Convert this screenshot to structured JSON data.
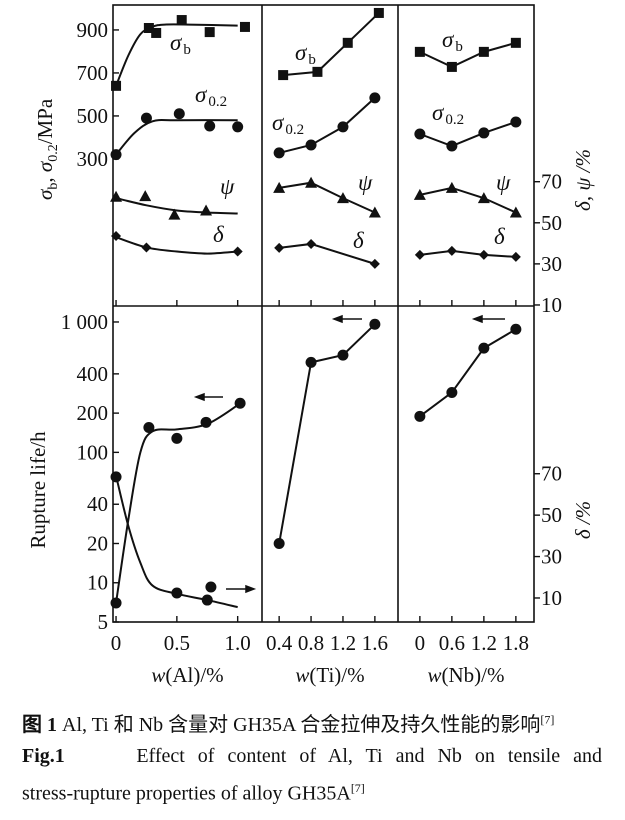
{
  "chart_data": {
    "type": "line",
    "panels": [
      {
        "element": "Al",
        "xlabel_pre": "w",
        "xlabel_post": "(Al)/%",
        "xticks": [
          0,
          0.5,
          1.0
        ],
        "xtick_labels": [
          "0",
          "0.5",
          "1.0"
        ],
        "xlim": [
          -0.025,
          1.2
        ],
        "top": {
          "sigma_b": {
            "marker": "square",
            "points": [
              [
                0,
                640
              ],
              [
                0.27,
                909
              ],
              [
                0.33,
                886
              ],
              [
                0.54,
                946
              ],
              [
                0.77,
                890
              ],
              [
                1.06,
                914
              ]
            ],
            "fit": [
              [
                0,
                640
              ],
              [
                0.1,
                780
              ],
              [
                0.2,
                880
              ],
              [
                0.3,
                915
              ],
              [
                0.4,
                925
              ],
              [
                0.6,
                925
              ],
              [
                1.0,
                920
              ]
            ]
          },
          "sigma_02": {
            "marker": "circle",
            "points": [
              [
                0,
                320
              ],
              [
                0.25,
                490
              ],
              [
                0.52,
                510
              ],
              [
                0.77,
                453
              ],
              [
                1.0,
                449
              ]
            ],
            "fit": [
              [
                0,
                320
              ],
              [
                0.15,
                420
              ],
              [
                0.3,
                475
              ],
              [
                0.5,
                480
              ],
              [
                1.0,
                480
              ]
            ]
          },
          "psi": {
            "marker": "triangle",
            "points": [
              [
                0,
                62.7
              ],
              [
                0.24,
                63
              ],
              [
                0.48,
                54
              ],
              [
                0.74,
                56
              ]
            ],
            "fit": [
              [
                0,
                62
              ],
              [
                0.25,
                58.5
              ],
              [
                0.5,
                56
              ],
              [
                0.75,
                55
              ],
              [
                1.0,
                54.5
              ]
            ]
          },
          "delta": {
            "marker": "diamond",
            "points": [
              [
                0,
                43.6
              ],
              [
                0.25,
                38
              ],
              [
                1.0,
                36
              ]
            ],
            "fit": [
              [
                0,
                43
              ],
              [
                0.25,
                38
              ],
              [
                0.5,
                36
              ],
              [
                0.75,
                35
              ],
              [
                1.0,
                36
              ]
            ]
          }
        },
        "bottom": {
          "rupture": {
            "marker": "circle",
            "axis": "left",
            "points": [
              [
                0,
                7
              ],
              [
                0.27,
                155
              ],
              [
                0.5,
                128
              ],
              [
                0.74,
                170
              ],
              [
                1.02,
                238
              ]
            ],
            "fit": [
              [
                0,
                7
              ],
              [
                0.1,
                30
              ],
              [
                0.2,
                100
              ],
              [
                0.3,
                145
              ],
              [
                0.5,
                150
              ],
              [
                0.75,
                165
              ],
              [
                1.0,
                230
              ]
            ]
          },
          "delta": {
            "marker": "circle",
            "axis": "right",
            "points": [
              [
                0,
                68.5
              ],
              [
                0.5,
                12.4
              ],
              [
                0.75,
                9
              ],
              [
                0.78,
                15.3
              ]
            ],
            "fit": [
              [
                0,
                69
              ],
              [
                0.1,
                45
              ],
              [
                0.2,
                27
              ],
              [
                0.3,
                16
              ],
              [
                0.5,
                12
              ],
              [
                0.75,
                9
              ],
              [
                1.0,
                5.6
              ]
            ]
          }
        }
      },
      {
        "element": "Ti",
        "xlabel_pre": "w",
        "xlabel_post": "(Ti)/%",
        "xticks": [
          0.4,
          0.8,
          1.2,
          1.6
        ],
        "xtick_labels": [
          "0.4",
          "0.8",
          "1.2",
          "1.6"
        ],
        "xlim": [
          0.185,
          1.89
        ],
        "top": {
          "sigma_b": {
            "marker": "square",
            "points": [
              [
                0.45,
                690
              ],
              [
                0.88,
                705
              ],
              [
                1.26,
                840
              ],
              [
                1.65,
                979
              ]
            ]
          },
          "sigma_02": {
            "marker": "circle",
            "points": [
              [
                0.4,
                328
              ],
              [
                0.8,
                365
              ],
              [
                1.2,
                449
              ],
              [
                1.6,
                584
              ]
            ]
          },
          "psi": {
            "marker": "triangle",
            "points": [
              [
                0.4,
                67
              ],
              [
                0.8,
                69.5
              ],
              [
                1.2,
                62
              ],
              [
                1.6,
                55
              ]
            ]
          },
          "delta": {
            "marker": "diamond",
            "points": [
              [
                0.4,
                37.8
              ],
              [
                0.8,
                39.7
              ],
              [
                1.6,
                30
              ]
            ]
          }
        },
        "bottom": {
          "rupture": {
            "marker": "circle",
            "axis": "left",
            "points": [
              [
                0.4,
                20
              ],
              [
                0.8,
                490
              ],
              [
                1.2,
                557
              ],
              [
                1.6,
                960
              ]
            ]
          }
        }
      },
      {
        "element": "Nb",
        "xlabel_pre": "w",
        "xlabel_post": "(Nb)/%",
        "xticks": [
          0,
          0.6,
          1.2,
          1.8
        ],
        "xtick_labels": [
          "0",
          "0.6",
          "1.2",
          "1.8"
        ],
        "xlim": [
          -0.41,
          2.14
        ],
        "top": {
          "sigma_b": {
            "marker": "square",
            "points": [
              [
                0,
                798
              ],
              [
                0.6,
                728
              ],
              [
                1.2,
                798
              ],
              [
                1.8,
                840
              ]
            ]
          },
          "sigma_02": {
            "marker": "circle",
            "points": [
              [
                0,
                416
              ],
              [
                0.6,
                360
              ],
              [
                1.2,
                421
              ],
              [
                1.8,
                472
              ]
            ]
          },
          "psi": {
            "marker": "triangle",
            "points": [
              [
                0,
                63.6
              ],
              [
                0.6,
                67
              ],
              [
                1.2,
                62
              ],
              [
                1.8,
                55
              ]
            ]
          },
          "delta": {
            "marker": "diamond",
            "points": [
              [
                0,
                34.4
              ],
              [
                0.6,
                36.3
              ],
              [
                1.2,
                34.4
              ],
              [
                1.8,
                33.4
              ]
            ]
          }
        },
        "bottom": {
          "rupture": {
            "marker": "circle",
            "axis": "left",
            "points": [
              [
                0,
                189
              ],
              [
                0.6,
                288
              ],
              [
                1.2,
                630
              ],
              [
                1.8,
                880
              ]
            ]
          }
        }
      }
    ],
    "axes": {
      "top_left": {
        "label_parts": [
          "σ",
          "b",
          ", σ",
          "0.2",
          "/MPa"
        ],
        "ticks": [
          300,
          500,
          700,
          900
        ],
        "ylim": [
          -384,
          1016
        ]
      },
      "top_right": {
        "label": "δ, ψ /%",
        "ticks": [
          10,
          30,
          50,
          70
        ],
        "ylim": [
          9.5,
          156
        ]
      },
      "bottom_left": {
        "label": "Rupture life/h",
        "scale": "log",
        "ticks": [
          5,
          10,
          20,
          40,
          100,
          200,
          400,
          1000
        ],
        "tick_labels": [
          "5",
          "10",
          "20",
          "40",
          "100",
          "200",
          "400",
          "1 000"
        ],
        "ylim": [
          5,
          1326
        ]
      },
      "bottom_right": {
        "label": "δ /%",
        "ticks": [
          10,
          30,
          50,
          70
        ],
        "ylim": [
          -1.6,
          151
        ]
      }
    },
    "series_labels": {
      "sigma_b": {
        "symbol": "σ",
        "sub": "b"
      },
      "sigma_02": {
        "symbol": "σ",
        "sub": "0.2"
      },
      "psi": {
        "symbol": "ψ",
        "sub": ""
      },
      "delta": {
        "symbol": "δ",
        "sub": ""
      }
    },
    "grid": false,
    "color": "#111111"
  },
  "caption": {
    "cn_prefix": "图 1",
    "cn_text": " Al, Ti 和 Nb 含量对 GH35A 合金拉伸及持久性能的影响",
    "cn_ref": "[7]",
    "en_prefix": "Fig.1",
    "en_text_line1": "Effect of content of Al, Ti and Nb on tensile and",
    "en_text_line2": "stress-rupture properties of alloy GH35A",
    "en_ref": "[7]"
  }
}
